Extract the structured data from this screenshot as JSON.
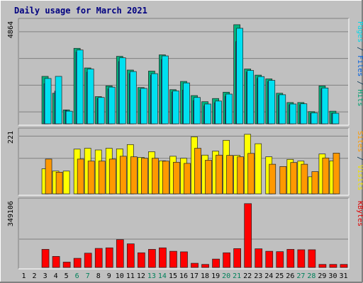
{
  "chart_data": {
    "type": "bar",
    "title": "Daily usage for March 2021",
    "days": [
      "1",
      "2",
      "3",
      "4",
      "5",
      "6",
      "7",
      "8",
      "9",
      "10",
      "11",
      "12",
      "13",
      "14",
      "15",
      "16",
      "17",
      "18",
      "19",
      "20",
      "21",
      "22",
      "23",
      "24",
      "25",
      "26",
      "27",
      "28",
      "29",
      "30",
      "31"
    ],
    "weekend_days": [
      "6",
      "7",
      "13",
      "14",
      "20",
      "21",
      "27",
      "28"
    ],
    "panels": [
      {
        "name": "hits-files-pages",
        "max_label": "4864",
        "max": 4864,
        "legend": [
          {
            "text": "Pages",
            "color": "#00D8E8"
          },
          {
            "text": " / ",
            "color": "#003050"
          },
          {
            "text": "Files",
            "color": "#0060E0"
          },
          {
            "text": " / ",
            "color": "#003050"
          },
          {
            "text": "Hits",
            "color": "#00A070"
          }
        ],
        "series": [
          {
            "name": "Hits",
            "color": "#00B07C",
            "values": [
              0,
              0,
              2250,
              1450,
              660,
              3580,
              2650,
              1290,
              1800,
              3200,
              2550,
              1720,
              2500,
              3270,
              1620,
              2010,
              1340,
              1050,
              1200,
              1500,
              4700,
              2600,
              2310,
              2130,
              1450,
              1010,
              1010,
              580,
              1800,
              600,
              0
            ]
          },
          {
            "name": "Files",
            "color": "#0050E0",
            "values": [
              0,
              0,
              1900,
              1550,
              640,
              3400,
              2450,
              1200,
              1650,
              2950,
              2380,
              1600,
              2300,
              3050,
              1500,
              1600,
              1100,
              850,
              1000,
              1300,
              3900,
              2450,
              2150,
              2000,
              1350,
              900,
              900,
              500,
              1650,
              500,
              0
            ]
          },
          {
            "name": "Pages",
            "color": "#00E0F0",
            "values": [
              0,
              0,
              2150,
              2250,
              600,
              3500,
              2600,
              1250,
              1740,
              3130,
              2480,
              1680,
              2380,
              3220,
              1560,
              1940,
              1250,
              940,
              1080,
              1410,
              4530,
              2530,
              2240,
              2060,
              1380,
              940,
              950,
              520,
              1700,
              500,
              0
            ]
          }
        ]
      },
      {
        "name": "visits-sites",
        "max_label": "221",
        "max": 221,
        "legend": [
          {
            "text": "Sites",
            "color": "#FF9A00"
          },
          {
            "text": " / ",
            "color": "#003050"
          },
          {
            "text": "Visits",
            "color": "#F0E000"
          }
        ],
        "series": [
          {
            "name": "Visits",
            "color": "#FFFF00",
            "values": [
              0,
              0,
              88,
              80,
              80,
              157,
              160,
              154,
              160,
              158,
              173,
              128,
              148,
              116,
              132,
              125,
              200,
              136,
              150,
              188,
              135,
              209,
              176,
              130,
              0,
              121,
              115,
              60,
              140,
              116,
              0
            ]
          },
          {
            "name": "Sites",
            "color": "#FF9900",
            "values": [
              0,
              0,
              122,
              76,
              0,
              122,
              115,
              115,
              122,
              132,
              130,
              125,
              125,
              115,
              111,
              107,
              160,
              118,
              136,
              135,
              130,
              142,
              0,
              104,
              96,
              110,
              104,
              78,
              126,
              143,
              0
            ]
          }
        ]
      },
      {
        "name": "kbytes",
        "max_label": "349106",
        "max": 349106,
        "legend": [
          {
            "text": "KBytes",
            "color": "#E00000"
          }
        ],
        "series": [
          {
            "name": "KBytes",
            "color": "#FF0000",
            "values": [
              0,
              0,
              95000,
              58000,
              28000,
              48000,
              75000,
              100000,
              103000,
              146000,
              124000,
              77000,
              95000,
              103000,
              85000,
              82000,
              22000,
              16000,
              44000,
              77000,
              99000,
              335000,
              98000,
              85000,
              83000,
              95000,
              93000,
              93000,
              16000,
              16000,
              16000
            ]
          }
        ]
      }
    ]
  }
}
